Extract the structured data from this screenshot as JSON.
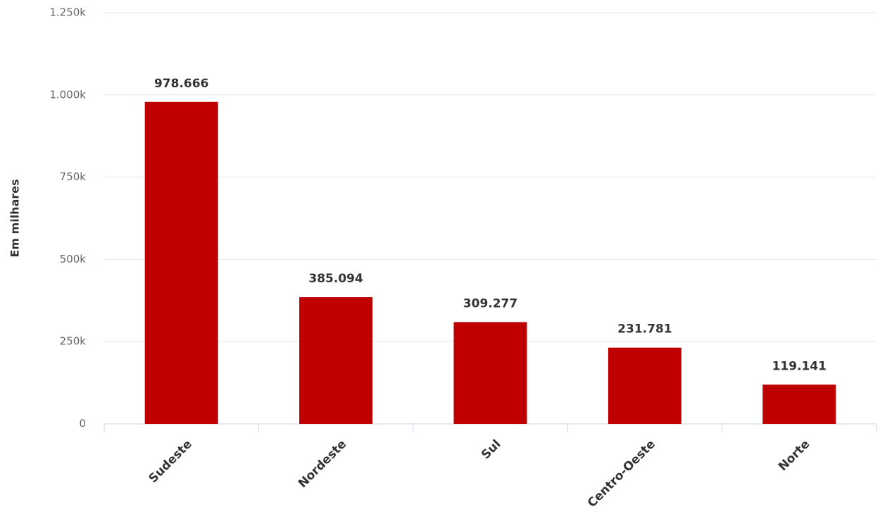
{
  "chart_data": {
    "type": "bar",
    "y_label": "Em milhares",
    "categories": [
      "Sudeste",
      "Nordeste",
      "Sul",
      "Centro-Oeste",
      "Norte"
    ],
    "values": [
      978666,
      385094,
      309277,
      231781,
      119141
    ],
    "value_labels": [
      "978.666",
      "385.094",
      "309.277",
      "231.781",
      "119.141"
    ],
    "color": "#bf0000",
    "ylim": [
      0,
      1250000
    ],
    "yticks": [
      0,
      {
        "value": 250000,
        "label": "250k"
      },
      {
        "value": 500000,
        "label": "500k"
      },
      {
        "value": 750000,
        "label": "750k"
      },
      {
        "value": 1000000,
        "label": "1.000k"
      },
      {
        "value": 1250000,
        "label": "1.250k"
      }
    ],
    "grid": true
  }
}
